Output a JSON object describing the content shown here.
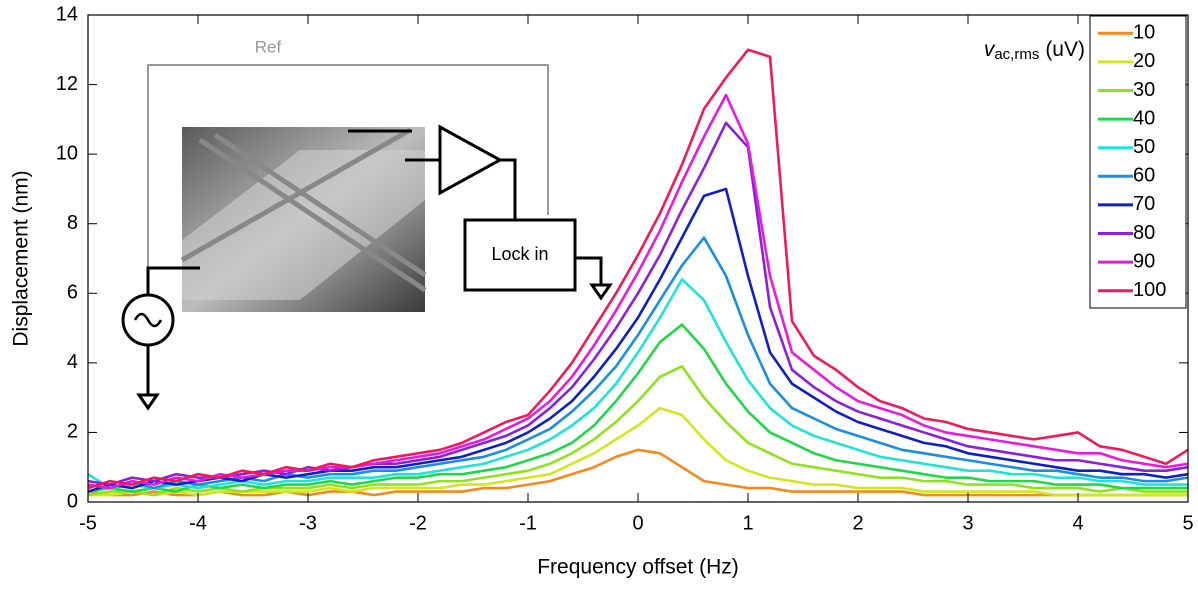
{
  "chart_data": {
    "type": "line",
    "xlabel": "Frequency offset (Hz)",
    "ylabel": "Displacement (nm)",
    "xlim": [
      -5,
      5
    ],
    "ylim": [
      0,
      14
    ],
    "xticks": [
      -5,
      -4,
      -3,
      -2,
      -1,
      0,
      1,
      2,
      3,
      4,
      5
    ],
    "yticks": [
      0,
      2,
      4,
      6,
      8,
      10,
      12,
      14
    ],
    "grid": false,
    "legend_position": "northeast",
    "legend_title": {
      "symbol": "v",
      "subscript": "ac,rms",
      "unit": "(uV)"
    },
    "annotations": [
      "Ref",
      "Lock in"
    ],
    "x": [
      -5,
      -4.8,
      -4.6,
      -4.4,
      -4.2,
      -4,
      -3.8,
      -3.6,
      -3.4,
      -3.2,
      -3,
      -2.8,
      -2.6,
      -2.4,
      -2.2,
      -2,
      -1.8,
      -1.6,
      -1.4,
      -1.2,
      -1,
      -0.8,
      -0.6,
      -0.4,
      -0.2,
      0,
      0.2,
      0.4,
      0.6,
      0.8,
      1,
      1.2,
      1.4,
      1.6,
      1.8,
      2,
      2.2,
      2.4,
      2.6,
      2.8,
      3,
      3.2,
      3.4,
      3.6,
      3.8,
      4,
      4.2,
      4.4,
      4.6,
      4.8,
      5
    ],
    "series": [
      {
        "name": "10",
        "color": "#f28a1e",
        "values": [
          0.3,
          0.2,
          0.2,
          0.3,
          0.2,
          0.2,
          0.3,
          0.2,
          0.2,
          0.3,
          0.2,
          0.3,
          0.3,
          0.2,
          0.3,
          0.3,
          0.3,
          0.3,
          0.4,
          0.4,
          0.5,
          0.6,
          0.8,
          1.0,
          1.3,
          1.5,
          1.4,
          1.0,
          0.6,
          0.5,
          0.4,
          0.4,
          0.3,
          0.3,
          0.3,
          0.3,
          0.3,
          0.3,
          0.2,
          0.2,
          0.2,
          0.2,
          0.2,
          0.2,
          0.2,
          0.2,
          0.2,
          0.2,
          0.2,
          0.2,
          0.2
        ]
      },
      {
        "name": "20",
        "color": "#d2e61c",
        "values": [
          0.2,
          0.2,
          0.3,
          0.2,
          0.3,
          0.2,
          0.3,
          0.3,
          0.3,
          0.3,
          0.3,
          0.4,
          0.3,
          0.4,
          0.4,
          0.4,
          0.4,
          0.5,
          0.5,
          0.6,
          0.7,
          0.8,
          1.1,
          1.4,
          1.8,
          2.2,
          2.7,
          2.5,
          1.8,
          1.2,
          0.9,
          0.7,
          0.6,
          0.5,
          0.5,
          0.4,
          0.4,
          0.4,
          0.3,
          0.3,
          0.3,
          0.3,
          0.3,
          0.3,
          0.2,
          0.2,
          0.2,
          0.2,
          0.2,
          0.2,
          0.2
        ]
      },
      {
        "name": "30",
        "color": "#8ee31c",
        "values": [
          0.2,
          0.3,
          0.3,
          0.2,
          0.4,
          0.3,
          0.4,
          0.3,
          0.4,
          0.4,
          0.4,
          0.5,
          0.4,
          0.5,
          0.5,
          0.5,
          0.6,
          0.6,
          0.7,
          0.8,
          0.9,
          1.1,
          1.4,
          1.8,
          2.3,
          2.9,
          3.6,
          3.9,
          3.0,
          2.3,
          1.7,
          1.4,
          1.1,
          1.0,
          0.9,
          0.8,
          0.7,
          0.7,
          0.6,
          0.6,
          0.5,
          0.5,
          0.5,
          0.4,
          0.4,
          0.4,
          0.3,
          0.4,
          0.3,
          0.3,
          0.3
        ]
      },
      {
        "name": "40",
        "color": "#1ed84a",
        "values": [
          0.3,
          0.4,
          0.3,
          0.4,
          0.3,
          0.5,
          0.4,
          0.5,
          0.4,
          0.5,
          0.5,
          0.6,
          0.5,
          0.6,
          0.7,
          0.7,
          0.8,
          0.8,
          0.9,
          1.0,
          1.2,
          1.4,
          1.7,
          2.2,
          2.9,
          3.7,
          4.6,
          5.1,
          4.4,
          3.4,
          2.6,
          2.0,
          1.7,
          1.4,
          1.2,
          1.1,
          1.0,
          0.9,
          0.8,
          0.7,
          0.7,
          0.6,
          0.6,
          0.6,
          0.5,
          0.5,
          0.5,
          0.4,
          0.4,
          0.4,
          0.4
        ]
      },
      {
        "name": "50",
        "color": "#1ee4d6",
        "values": [
          0.8,
          0.4,
          0.5,
          0.4,
          0.5,
          0.4,
          0.5,
          0.6,
          0.5,
          0.6,
          0.6,
          0.7,
          0.7,
          0.7,
          0.8,
          0.8,
          0.9,
          1.0,
          1.1,
          1.3,
          1.5,
          1.8,
          2.2,
          2.7,
          3.4,
          4.3,
          5.3,
          6.4,
          5.8,
          4.6,
          3.5,
          2.7,
          2.2,
          1.9,
          1.7,
          1.5,
          1.3,
          1.2,
          1.1,
          1.0,
          0.9,
          0.9,
          0.8,
          0.8,
          0.7,
          0.7,
          0.6,
          0.6,
          0.5,
          0.5,
          0.5
        ]
      },
      {
        "name": "60",
        "color": "#1a8ee0",
        "values": [
          0.5,
          0.4,
          0.6,
          0.4,
          0.6,
          0.5,
          0.6,
          0.7,
          0.6,
          0.8,
          0.7,
          0.8,
          0.8,
          0.9,
          0.9,
          1.0,
          1.1,
          1.2,
          1.3,
          1.5,
          1.8,
          2.1,
          2.6,
          3.2,
          3.9,
          4.8,
          5.8,
          6.8,
          7.6,
          6.5,
          4.8,
          3.4,
          2.7,
          2.4,
          2.1,
          1.9,
          1.7,
          1.5,
          1.4,
          1.3,
          1.2,
          1.1,
          1.0,
          0.9,
          0.9,
          0.8,
          0.7,
          0.7,
          0.6,
          0.6,
          0.7
        ]
      },
      {
        "name": "70",
        "color": "#0f1fc8",
        "values": [
          0.3,
          0.5,
          0.4,
          0.6,
          0.5,
          0.6,
          0.7,
          0.6,
          0.8,
          0.7,
          0.8,
          0.9,
          0.9,
          1.0,
          1.0,
          1.1,
          1.2,
          1.3,
          1.5,
          1.7,
          2.0,
          2.4,
          2.9,
          3.6,
          4.4,
          5.3,
          6.4,
          7.6,
          8.8,
          9.0,
          6.5,
          4.3,
          3.4,
          3.0,
          2.6,
          2.3,
          2.1,
          1.9,
          1.7,
          1.6,
          1.4,
          1.3,
          1.2,
          1.1,
          1.0,
          0.9,
          0.9,
          0.8,
          0.8,
          0.7,
          0.8
        ]
      },
      {
        "name": "80",
        "color": "#8a1fe0",
        "values": [
          0.6,
          0.5,
          0.7,
          0.6,
          0.8,
          0.7,
          0.7,
          0.8,
          0.9,
          0.8,
          1.0,
          0.9,
          1.0,
          1.1,
          1.1,
          1.2,
          1.3,
          1.5,
          1.7,
          1.9,
          2.2,
          2.7,
          3.3,
          4.1,
          5.0,
          6.0,
          7.1,
          8.4,
          9.6,
          10.9,
          10.2,
          5.6,
          3.8,
          3.3,
          2.9,
          2.6,
          2.4,
          2.2,
          2.0,
          1.8,
          1.6,
          1.5,
          1.4,
          1.3,
          1.2,
          1.2,
          1.1,
          1.0,
          0.9,
          0.9,
          1.0
        ]
      },
      {
        "name": "90",
        "color": "#e81ae0",
        "values": [
          0.5,
          0.4,
          0.6,
          0.5,
          0.7,
          0.6,
          0.8,
          0.7,
          0.8,
          0.9,
          0.9,
          1.0,
          1.0,
          1.1,
          1.2,
          1.3,
          1.4,
          1.6,
          1.8,
          2.1,
          2.4,
          2.9,
          3.6,
          4.5,
          5.5,
          6.6,
          7.8,
          9.2,
          10.5,
          11.7,
          10.3,
          6.5,
          4.3,
          3.8,
          3.3,
          2.9,
          2.7,
          2.5,
          2.2,
          2.0,
          1.9,
          1.8,
          1.7,
          1.6,
          1.5,
          1.4,
          1.4,
          1.2,
          1.1,
          1.0,
          1.1
        ]
      },
      {
        "name": "100",
        "color": "#f01a5a",
        "values": [
          0.4,
          0.6,
          0.5,
          0.7,
          0.6,
          0.8,
          0.7,
          0.9,
          0.8,
          1.0,
          0.9,
          1.1,
          1.0,
          1.2,
          1.3,
          1.4,
          1.5,
          1.7,
          2.0,
          2.3,
          2.5,
          3.2,
          4.0,
          5.0,
          6.0,
          7.1,
          8.3,
          9.7,
          11.3,
          12.2,
          13.0,
          12.8,
          5.2,
          4.2,
          3.8,
          3.3,
          2.9,
          2.7,
          2.4,
          2.3,
          2.1,
          2.0,
          1.9,
          1.8,
          1.9,
          2.0,
          1.6,
          1.5,
          1.3,
          1.1,
          1.5
        ]
      }
    ]
  }
}
